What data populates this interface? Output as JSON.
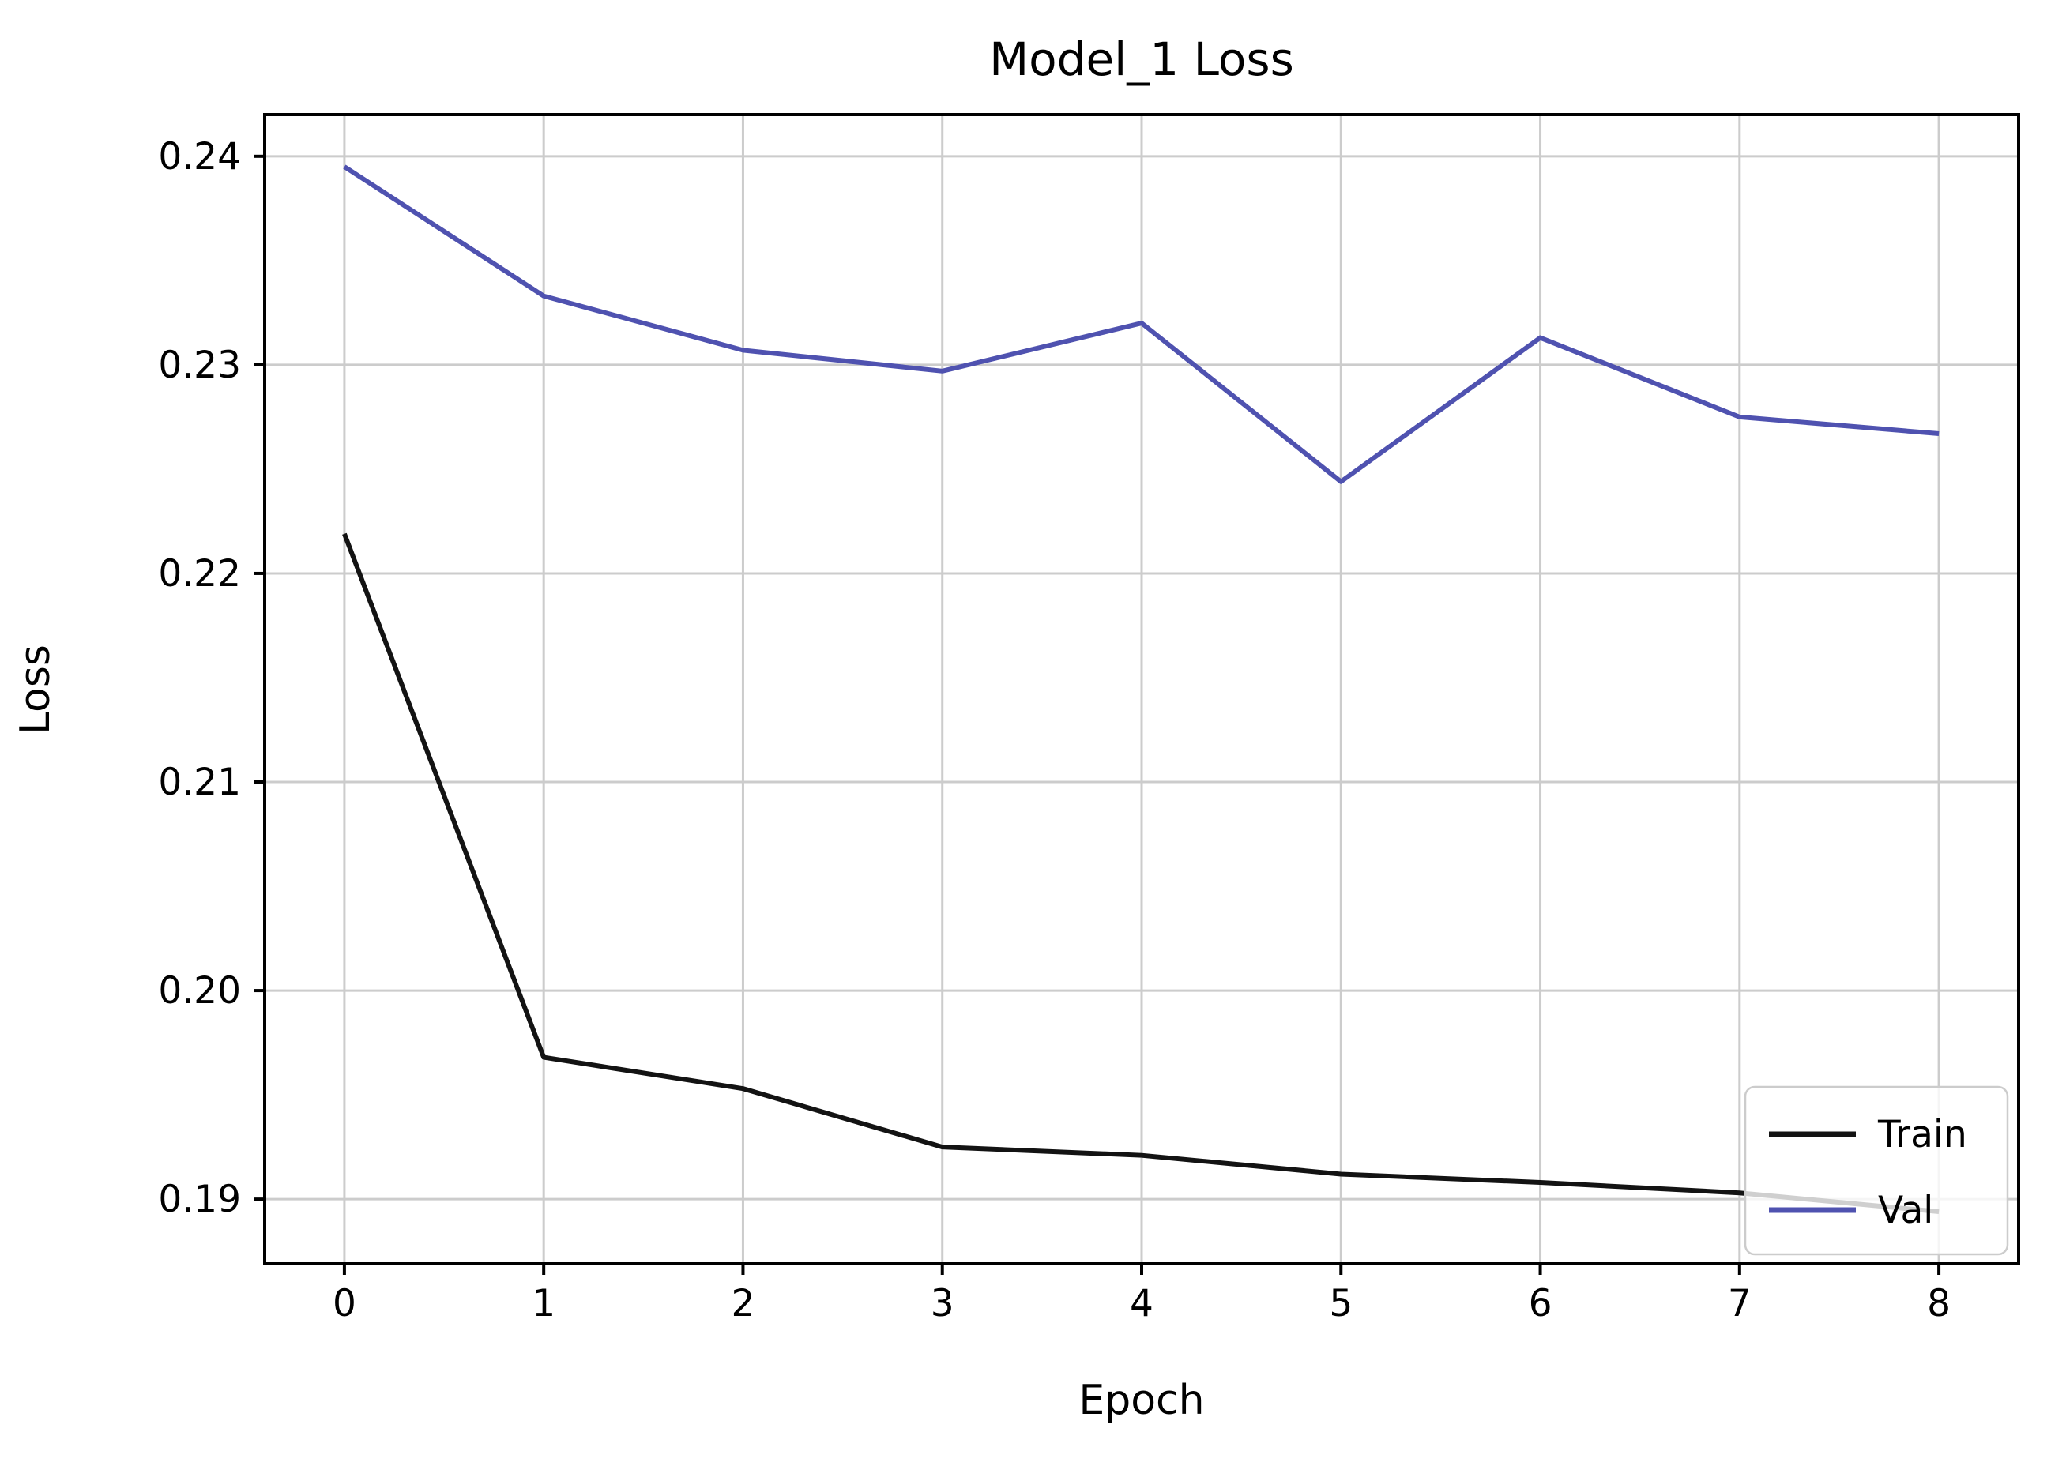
{
  "chart_data": {
    "type": "line",
    "title": "Model_1 Loss",
    "xlabel": "Epoch",
    "ylabel": "Loss",
    "x": [
      0,
      1,
      2,
      3,
      4,
      5,
      6,
      7,
      8
    ],
    "series": [
      {
        "name": "Train",
        "color": "#131313",
        "values": [
          0.2219,
          0.1968,
          0.1953,
          0.1925,
          0.1921,
          0.1912,
          0.1908,
          0.1903,
          0.1894
        ]
      },
      {
        "name": "Val",
        "color": "#4f52b0",
        "values": [
          0.2395,
          0.2333,
          0.2307,
          0.2297,
          0.232,
          0.2244,
          0.2313,
          0.2275,
          0.2267
        ]
      }
    ],
    "xticks": [
      0,
      1,
      2,
      3,
      4,
      5,
      6,
      7,
      8
    ],
    "xtick_labels": [
      "0",
      "1",
      "2",
      "3",
      "4",
      "5",
      "6",
      "7",
      "8"
    ],
    "yticks": [
      0.19,
      0.2,
      0.21,
      0.22,
      0.23,
      0.24
    ],
    "ytick_labels": [
      "0.19",
      "0.20",
      "0.21",
      "0.22",
      "0.23",
      "0.24"
    ],
    "xlim": [
      -0.4,
      8.4
    ],
    "ylim": [
      0.1869,
      0.242
    ],
    "grid": true,
    "legend": {
      "position": "lower right",
      "entries": [
        "Train",
        "Val"
      ]
    },
    "colors": {
      "grid": "#cccccc",
      "axes": "#000000",
      "background": "#ffffff",
      "legend_border": "#cccccc",
      "legend_background": "#ffffff"
    }
  }
}
